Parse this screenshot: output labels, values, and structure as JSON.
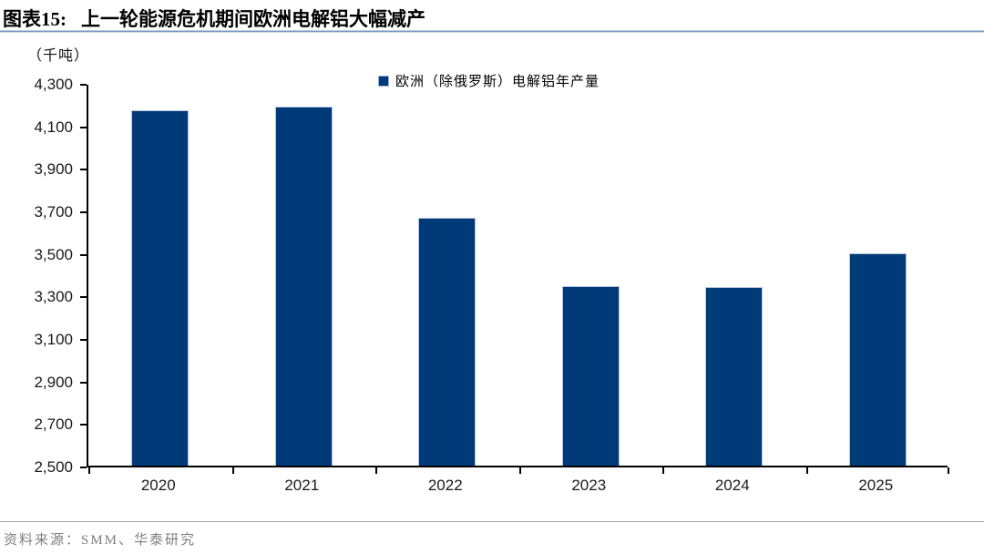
{
  "header": {
    "figure_label": "图表15:",
    "title": "上一轮能源危机期间欧洲电解铝大幅减产"
  },
  "chart": {
    "unit_label": "（千吨）",
    "legend_label": "欧洲（除俄罗斯）电解铝年产量"
  },
  "chart_data": {
    "type": "bar",
    "categories": [
      "2020",
      "2021",
      "2022",
      "2023",
      "2024",
      "2025"
    ],
    "values": [
      4170,
      4190,
      3665,
      3345,
      3340,
      3500
    ],
    "title": "上一轮能源危机期间欧洲电解铝大幅减产",
    "xlabel": "",
    "ylabel": "（千吨）",
    "ylim": [
      2500,
      4300
    ],
    "ytick_step": 200,
    "legend": [
      "欧洲（除俄罗斯）电解铝年产量"
    ],
    "legend_position": "top",
    "grid": false,
    "bar_color": "#003a78"
  },
  "footer": {
    "source": "资料来源：SMM、华泰研究"
  },
  "colors": {
    "bar": "#003a78",
    "axis": "#000000",
    "title_rule": "#7d99ba",
    "source_text": "#7f7f7f",
    "legend_marker": "#003a78"
  }
}
